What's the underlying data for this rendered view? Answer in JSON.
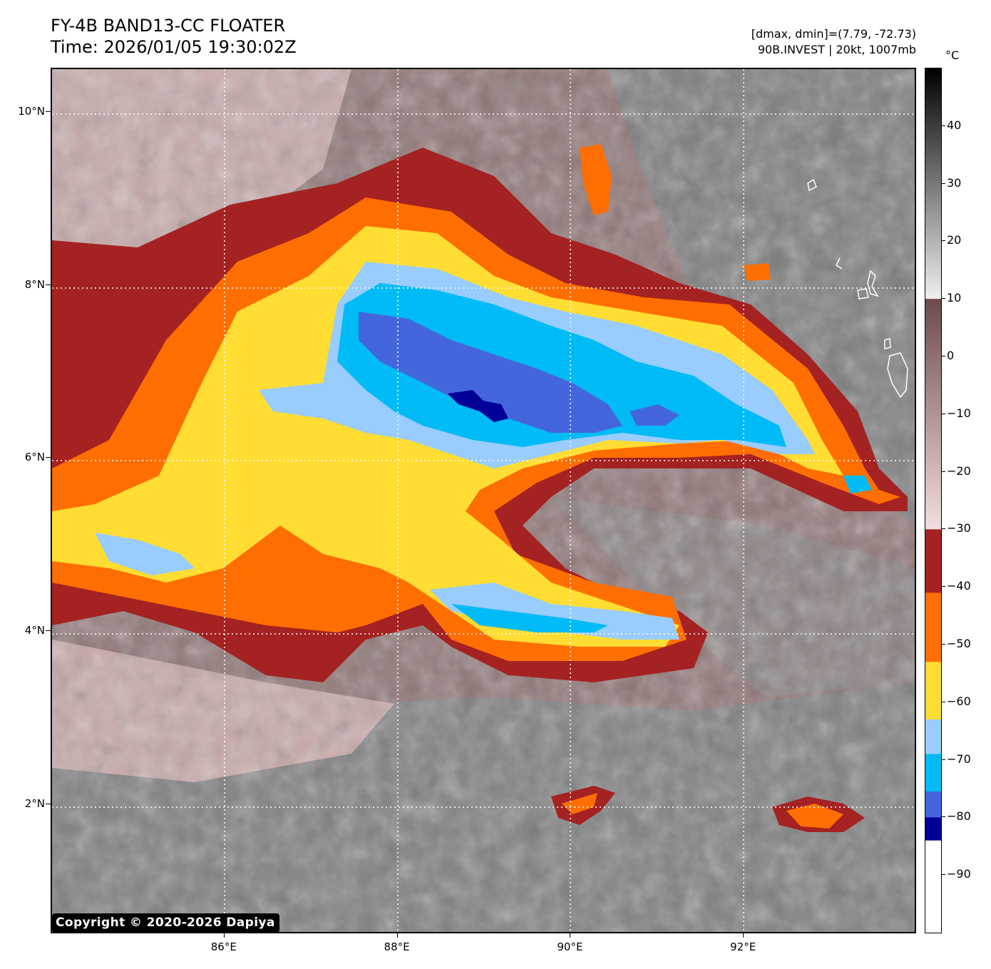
{
  "header": {
    "title_line1": "FY-4B BAND13-CC FLOATER",
    "title_line2": "Time: 2026/01/05 19:30:02Z",
    "range_line": "[dmax, dmin]=(7.79, -72.73)",
    "storm_line": "90B.INVEST | 20kt, 1007mb"
  },
  "map": {
    "lon_range": [
      84.0,
      94.0
    ],
    "lat_range": [
      0.5,
      10.5
    ],
    "x_ticks": [
      {
        "value": 86,
        "label": "86°E"
      },
      {
        "value": 88,
        "label": "88°E"
      },
      {
        "value": 90,
        "label": "90°E"
      },
      {
        "value": 92,
        "label": "92°E"
      }
    ],
    "y_ticks": [
      {
        "value": 10,
        "label": "10°N"
      },
      {
        "value": 8,
        "label": "8°N"
      },
      {
        "value": 6,
        "label": "6°N"
      },
      {
        "value": 4,
        "label": "4°N"
      },
      {
        "value": 2,
        "label": "2°N"
      }
    ],
    "gridlines": true,
    "copyright": "Copyright © 2020-2026 Dapiya"
  },
  "colorbar": {
    "unit": "°C",
    "range": [
      -100,
      50
    ],
    "ticks": [
      "40",
      "30",
      "20",
      "10",
      "0",
      "−10",
      "−20",
      "−30",
      "−40",
      "−50",
      "−60",
      "−70",
      "−80",
      "−90"
    ],
    "tick_values": [
      40,
      30,
      20,
      10,
      0,
      -10,
      -20,
      -30,
      -40,
      -50,
      -60,
      -70,
      -80,
      -90
    ],
    "segments": [
      {
        "from": 50,
        "to": 10,
        "top": "#000000",
        "bottom": "#f0f0f0"
      },
      {
        "from": 10,
        "to": -30,
        "top": "#6e4a4a",
        "bottom": "#f2dede"
      },
      {
        "from": -30,
        "to": -41,
        "color": "#a52222"
      },
      {
        "from": -41,
        "to": -53,
        "color": "#ff6e00"
      },
      {
        "from": -53,
        "to": -63,
        "color": "#ffdd33"
      },
      {
        "from": -63,
        "to": -69,
        "color": "#99ccff"
      },
      {
        "from": -69,
        "to": -75.5,
        "color": "#00bbf5"
      },
      {
        "from": -75.5,
        "to": -80,
        "color": "#4466dd"
      },
      {
        "from": -80,
        "to": -84,
        "color": "#000099"
      },
      {
        "from": -84,
        "to": -100,
        "color": "#ffffff"
      }
    ]
  },
  "colors": {
    "warm_gray": "#7a7a7a",
    "warm_brown": "#8a6b6b",
    "pink": "#d9b8b8",
    "dark_red": "#a52222",
    "orange": "#ff6e00",
    "yellow": "#ffdd33",
    "light_blue": "#99ccff",
    "cyan": "#00bbf5",
    "blue": "#4466dd",
    "navy": "#000099"
  }
}
